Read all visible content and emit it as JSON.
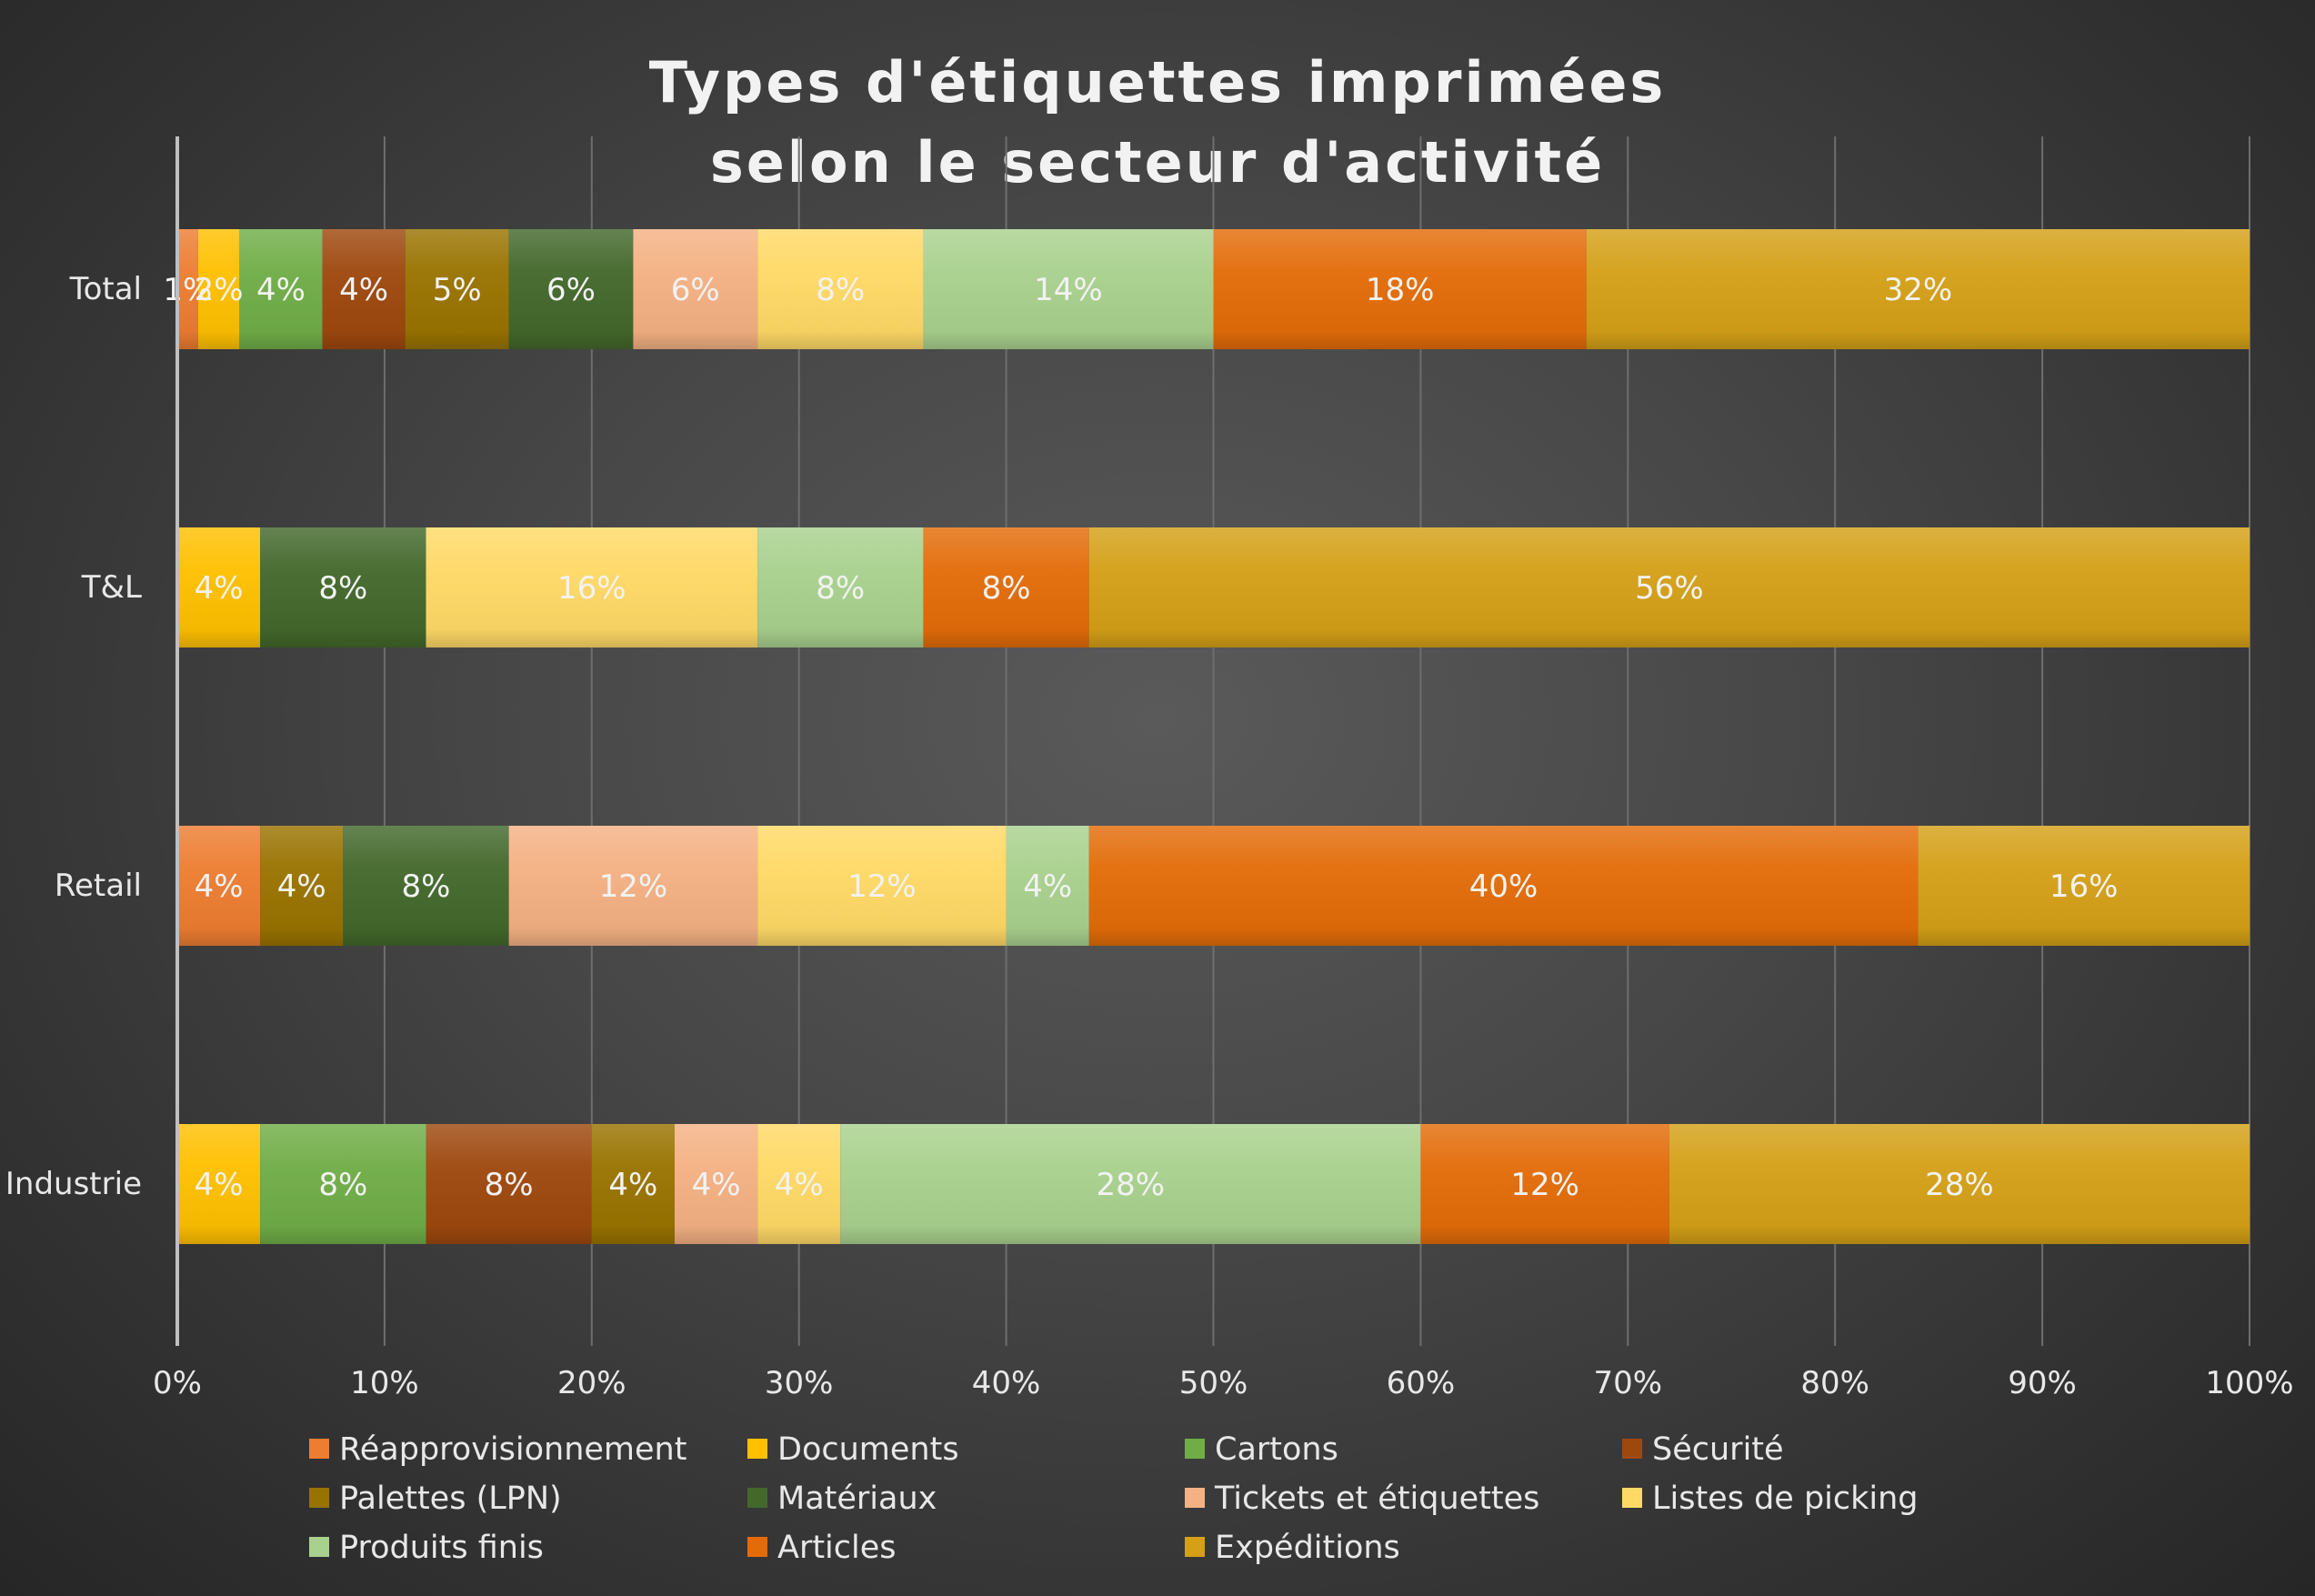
{
  "chart_data": {
    "type": "bar",
    "orientation": "horizontal",
    "stacked": "percent",
    "title_lines": [
      "Types d'étiquettes imprimées",
      "selon le secteur d'activité"
    ],
    "categories": [
      "Total",
      "T&L",
      "Retail",
      "Industrie"
    ],
    "x_ticks": [
      "0%",
      "10%",
      "20%",
      "30%",
      "40%",
      "50%",
      "60%",
      "70%",
      "80%",
      "90%",
      "100%"
    ],
    "xlim": [
      0,
      100
    ],
    "grid": true,
    "legend_position": "bottom",
    "series": [
      {
        "name": "Réapprovisionnement",
        "color": "#ed7d31",
        "values": [
          1,
          0,
          4,
          0
        ],
        "labels": [
          "1%",
          "",
          "4%",
          ""
        ]
      },
      {
        "name": "Documents",
        "color": "#ffc000",
        "values": [
          2,
          4,
          0,
          4
        ],
        "labels": [
          "2%",
          "4%",
          "",
          "4%"
        ]
      },
      {
        "name": "Cartons",
        "color": "#70ad47",
        "values": [
          4,
          0,
          0,
          8
        ],
        "labels": [
          "4%",
          "",
          "",
          "8%"
        ]
      },
      {
        "name": "Sécurité",
        "color": "#9e480e",
        "values": [
          4,
          0,
          0,
          8
        ],
        "labels": [
          "4%",
          "",
          "",
          "8%"
        ]
      },
      {
        "name": "Palettes (LPN)",
        "color": "#997300",
        "values": [
          5,
          0,
          4,
          4
        ],
        "labels": [
          "5%",
          "",
          "4%",
          "4%"
        ]
      },
      {
        "name": "Matériaux",
        "color": "#43682b",
        "values": [
          6,
          8,
          8,
          0
        ],
        "labels": [
          "6%",
          "8%",
          "8%",
          ""
        ]
      },
      {
        "name": "Tickets et étiquettes",
        "color": "#f4b183",
        "values": [
          6,
          0,
          12,
          4
        ],
        "labels": [
          "6%",
          "",
          "12%",
          "4%"
        ]
      },
      {
        "name": "Listes de picking",
        "color": "#ffd966",
        "values": [
          8,
          16,
          12,
          4
        ],
        "labels": [
          "8%",
          "16%",
          "12%",
          "4%"
        ]
      },
      {
        "name": "Produits finis",
        "color": "#a9d18e",
        "values": [
          14,
          8,
          4,
          28
        ],
        "labels": [
          "14%",
          "8%",
          "4%",
          "28%"
        ]
      },
      {
        "name": "Articles",
        "color": "#e36c09",
        "values": [
          18,
          8,
          40,
          12
        ],
        "labels": [
          "18%",
          "8%",
          "40%",
          "12%"
        ]
      },
      {
        "name": "Expéditions",
        "color": "#d4a017",
        "values": [
          32,
          56,
          16,
          28
        ],
        "labels": [
          "32%",
          "56%",
          "16%",
          "28%"
        ]
      }
    ]
  }
}
